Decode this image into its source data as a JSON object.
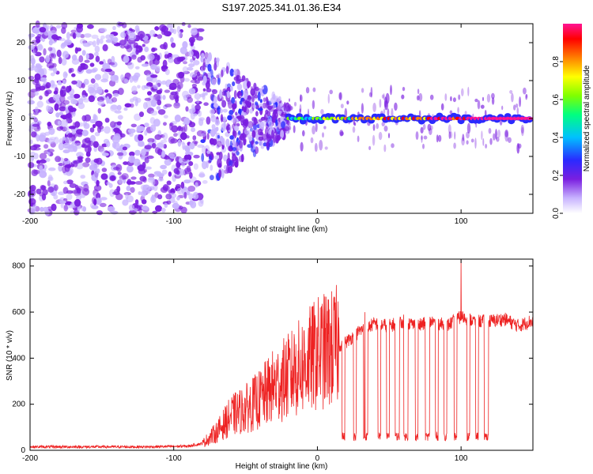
{
  "title": "S197.2025.341.01.36.E34",
  "chart_data": [
    {
      "type": "heatmap",
      "name": "spectrogram",
      "xlabel": "Height of straight line (km)",
      "ylabel": "Frequency (Hz)",
      "xlim": [
        -200,
        150
      ],
      "ylim": [
        -25,
        25
      ],
      "x_ticks": [
        -200,
        -100,
        0,
        100
      ],
      "x_tick_labels": [
        "-200",
        "-100",
        "0",
        "100"
      ],
      "y_ticks": [
        -20,
        -10,
        0,
        10,
        20
      ],
      "y_tick_labels": [
        "-20",
        "-10",
        "0",
        "10",
        "20"
      ],
      "colorbar": {
        "label": "Normalized spectral amplitude",
        "range": [
          0,
          1
        ],
        "ticks": [
          0.0,
          0.2,
          0.4,
          0.6,
          0.8
        ],
        "tick_labels": [
          "0.0",
          "0.2",
          "0.4",
          "0.6",
          "0.8"
        ],
        "colors": [
          "#ffffff",
          "#c8b4ff",
          "#7a1fe0",
          "#2a2aff",
          "#00c0ff",
          "#00ff80",
          "#7fff00",
          "#ffff00",
          "#ff8000",
          "#ff0000",
          "#ff1493"
        ]
      },
      "regions": [
        {
          "x_range": [
            -200,
            -80
          ],
          "description_level": "noise",
          "amplitude": 0.1
        },
        {
          "x_range": [
            -80,
            -20
          ],
          "description_level": "transition",
          "amplitude": 0.2
        },
        {
          "x_range": [
            -20,
            150
          ],
          "signal_frequency_hz": 0,
          "amplitude": 0.95
        }
      ]
    },
    {
      "type": "line",
      "name": "snr",
      "xlabel": "Height of straight line (km)",
      "ylabel": "SNR (10 * v/v)",
      "xlim": [
        -200,
        150
      ],
      "ylim": [
        0,
        830
      ],
      "x_ticks": [
        -200,
        -100,
        0,
        100
      ],
      "x_tick_labels": [
        "-200",
        "-100",
        "0",
        "100"
      ],
      "y_ticks": [
        0,
        200,
        400,
        600,
        800
      ],
      "y_tick_labels": [
        "0",
        "200",
        "400",
        "600",
        "800"
      ],
      "color": "#ee2222",
      "series": [
        {
          "name": "SNR",
          "envelope": [
            [
              -200,
              15
            ],
            [
              -160,
              15
            ],
            [
              -120,
              15
            ],
            [
              -90,
              18
            ],
            [
              -80,
              30
            ],
            [
              -70,
              80
            ],
            [
              -60,
              150
            ],
            [
              -50,
              180
            ],
            [
              -40,
              220
            ],
            [
              -30,
              280
            ],
            [
              -20,
              320
            ],
            [
              -10,
              370
            ],
            [
              0,
              420
            ],
            [
              10,
              440
            ],
            [
              20,
              470
            ],
            [
              30,
              520
            ],
            [
              40,
              550
            ],
            [
              50,
              540
            ],
            [
              60,
              560
            ],
            [
              70,
              540
            ],
            [
              80,
              560
            ],
            [
              90,
              540
            ],
            [
              100,
              580
            ],
            [
              110,
              560
            ],
            [
              120,
              560
            ],
            [
              130,
              570
            ],
            [
              140,
              540
            ],
            [
              148,
              560
            ]
          ],
          "dropouts": [
            [
              17,
              19
            ],
            [
              25,
              27
            ],
            [
              32,
              35
            ],
            [
              42,
              44
            ],
            [
              48,
              50
            ],
            [
              54,
              57
            ],
            [
              60,
              63
            ],
            [
              68,
              70
            ],
            [
              75,
              78
            ],
            [
              82,
              84
            ],
            [
              88,
              90
            ],
            [
              95,
              97
            ],
            [
              104,
              106
            ],
            [
              110,
              112
            ],
            [
              116,
              119
            ]
          ],
          "dropout_level": 60,
          "spikes": [
            [
              100,
              830
            ],
            [
              -28,
              300
            ],
            [
              -16,
              480
            ],
            [
              33,
              600
            ]
          ]
        }
      ]
    }
  ]
}
